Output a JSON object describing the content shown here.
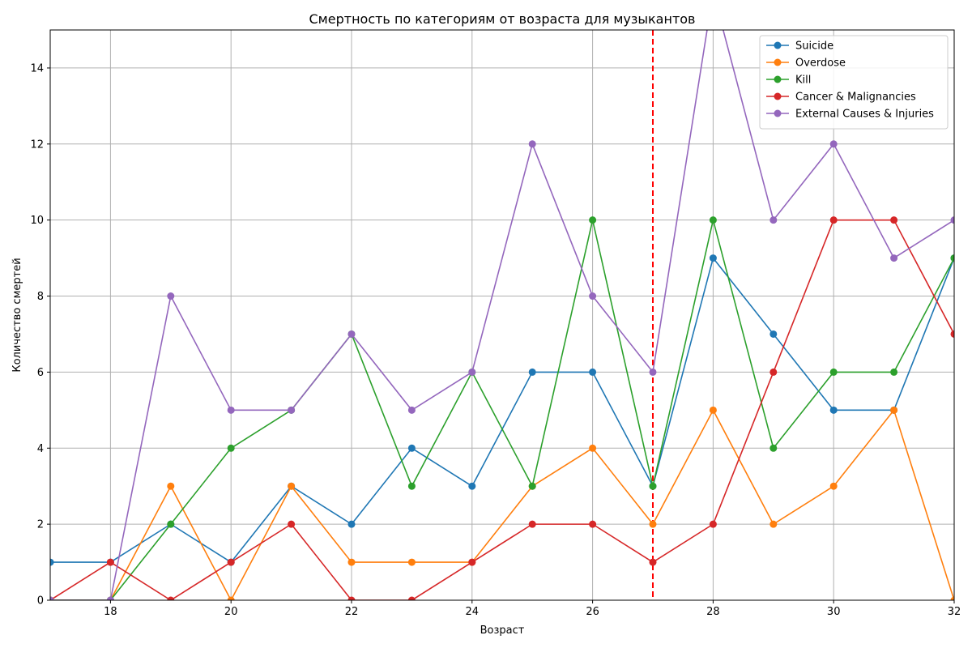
{
  "chart_data": {
    "type": "line",
    "title": "Смертность по категориям от возраста для музыкантов",
    "xlabel": "Возраст",
    "ylabel": "Количество смертей",
    "xlim": [
      17,
      32
    ],
    "ylim": [
      0,
      15
    ],
    "xticks": [
      18,
      20,
      22,
      24,
      26,
      28,
      30,
      32
    ],
    "yticks": [
      0,
      2,
      4,
      6,
      8,
      10,
      12,
      14
    ],
    "grid": true,
    "legend_position": "top-right",
    "x": [
      17,
      18,
      19,
      20,
      21,
      22,
      23,
      24,
      25,
      26,
      27,
      28,
      29,
      30,
      31,
      32
    ],
    "series": [
      {
        "name": "Suicide",
        "color": "#1f77b4",
        "values": [
          1,
          1,
          2,
          1,
          3,
          2,
          4,
          3,
          6,
          6,
          3,
          9,
          7,
          5,
          5,
          9
        ]
      },
      {
        "name": "Overdose",
        "color": "#ff7f0e",
        "values": [
          0,
          0,
          3,
          0,
          3,
          1,
          1,
          1,
          3,
          4,
          2,
          5,
          2,
          3,
          5,
          0
        ]
      },
      {
        "name": "Kill",
        "color": "#2ca02c",
        "values": [
          0,
          0,
          2,
          4,
          5,
          7,
          3,
          6,
          3,
          10,
          3,
          10,
          4,
          6,
          6,
          9
        ]
      },
      {
        "name": "Cancer & Malignancies",
        "color": "#d62728",
        "values": [
          0,
          1,
          0,
          1,
          2,
          0,
          0,
          1,
          2,
          2,
          1,
          2,
          6,
          10,
          10,
          7
        ]
      },
      {
        "name": "External Causes & Injuries",
        "color": "#9467bd",
        "values": [
          0,
          0,
          8,
          5,
          5,
          7,
          5,
          6,
          12,
          8,
          6,
          16,
          10,
          12,
          9,
          10
        ]
      }
    ],
    "reference_line": {
      "x": 27,
      "color": "#ff0000",
      "style": "dashed"
    }
  }
}
